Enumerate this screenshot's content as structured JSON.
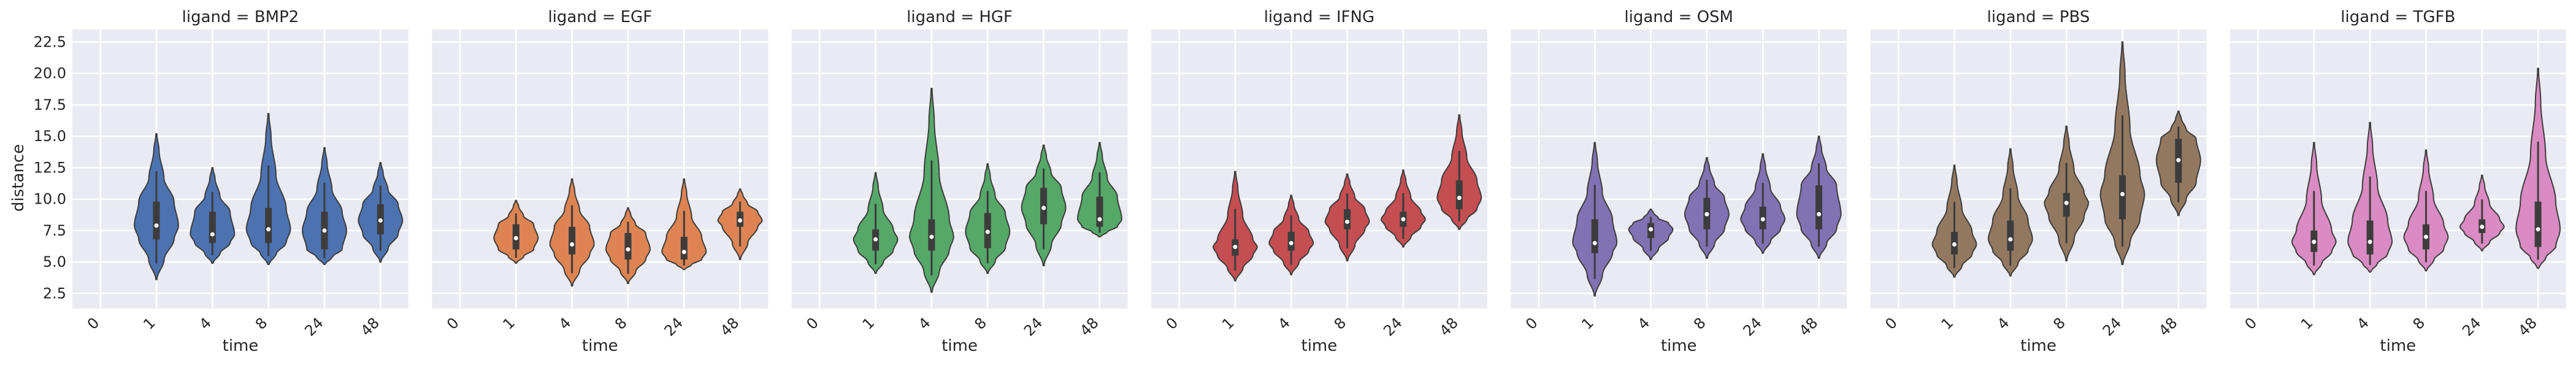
{
  "figure": {
    "ylabel": "distance",
    "xlabel": "time"
  },
  "chart_data": {
    "type": "violin",
    "facet_title_prefix": "ligand = ",
    "categories": [
      "0",
      "1",
      "4",
      "8",
      "24",
      "48"
    ],
    "ylim": [
      1.3,
      23.5
    ],
    "yticks": [
      2.5,
      5.0,
      7.5,
      10.0,
      12.5,
      15.0,
      17.5,
      20.0,
      22.5
    ],
    "ytick_labels": [
      "2.5",
      "5.0",
      "7.5",
      "10.0",
      "12.5",
      "15.0",
      "17.5",
      "20.0",
      "22.5"
    ],
    "grid": true,
    "panels": [
      {
        "ligand": "BMP2",
        "title": "ligand = BMP2",
        "color": "#4c72b0",
        "violins": [
          {
            "time": "1",
            "min": 3.6,
            "q1": 6.8,
            "median": 7.9,
            "q3": 9.8,
            "max": 15.2
          },
          {
            "time": "4",
            "min": 4.9,
            "q1": 6.5,
            "median": 7.2,
            "q3": 9.0,
            "max": 12.5
          },
          {
            "time": "8",
            "min": 4.8,
            "q1": 6.5,
            "median": 7.6,
            "q3": 9.3,
            "max": 16.8
          },
          {
            "time": "24",
            "min": 4.8,
            "q1": 6.0,
            "median": 7.5,
            "q3": 9.0,
            "max": 14.1
          },
          {
            "time": "48",
            "min": 5.0,
            "q1": 7.2,
            "median": 8.3,
            "q3": 9.6,
            "max": 12.9
          }
        ]
      },
      {
        "ligand": "EGF",
        "title": "ligand = EGF",
        "color": "#dd8452",
        "violins": [
          {
            "time": "1",
            "min": 4.9,
            "q1": 6.0,
            "median": 6.9,
            "q3": 8.0,
            "max": 9.9
          },
          {
            "time": "4",
            "min": 3.1,
            "q1": 5.6,
            "median": 6.4,
            "q3": 7.8,
            "max": 11.6
          },
          {
            "time": "8",
            "min": 3.3,
            "q1": 5.2,
            "median": 6.0,
            "q3": 7.3,
            "max": 9.3
          },
          {
            "time": "24",
            "min": 4.4,
            "q1": 5.2,
            "median": 5.8,
            "q3": 7.0,
            "max": 11.6
          },
          {
            "time": "48",
            "min": 5.2,
            "q1": 7.8,
            "median": 8.3,
            "q3": 9.0,
            "max": 10.8
          }
        ]
      },
      {
        "ligand": "HGF",
        "title": "ligand = HGF",
        "color": "#55a868",
        "violins": [
          {
            "time": "1",
            "min": 4.1,
            "q1": 5.9,
            "median": 6.8,
            "q3": 7.6,
            "max": 12.1
          },
          {
            "time": "4",
            "min": 2.6,
            "q1": 5.9,
            "median": 7.0,
            "q3": 8.4,
            "max": 18.8
          },
          {
            "time": "8",
            "min": 4.1,
            "q1": 6.1,
            "median": 7.4,
            "q3": 8.9,
            "max": 12.8
          },
          {
            "time": "24",
            "min": 4.7,
            "q1": 8.0,
            "median": 9.3,
            "q3": 10.9,
            "max": 14.3
          },
          {
            "time": "48",
            "min": 7.0,
            "q1": 7.8,
            "median": 8.4,
            "q3": 10.2,
            "max": 14.5
          }
        ]
      },
      {
        "ligand": "IFNG",
        "title": "ligand = IFNG",
        "color": "#c44e52",
        "violins": [
          {
            "time": "1",
            "min": 3.5,
            "q1": 5.5,
            "median": 6.2,
            "q3": 6.8,
            "max": 12.2
          },
          {
            "time": "4",
            "min": 4.0,
            "q1": 5.9,
            "median": 6.5,
            "q3": 7.4,
            "max": 10.3
          },
          {
            "time": "8",
            "min": 5.1,
            "q1": 7.6,
            "median": 8.2,
            "q3": 9.2,
            "max": 12.0
          },
          {
            "time": "24",
            "min": 6.2,
            "q1": 7.8,
            "median": 8.4,
            "q3": 9.0,
            "max": 12.3
          },
          {
            "time": "48",
            "min": 7.6,
            "q1": 9.2,
            "median": 10.1,
            "q3": 11.5,
            "max": 16.7
          }
        ]
      },
      {
        "ligand": "OSM",
        "title": "ligand = OSM",
        "color": "#8172b3",
        "violins": [
          {
            "time": "1",
            "min": 2.3,
            "q1": 5.7,
            "median": 6.5,
            "q3": 8.4,
            "max": 14.5
          },
          {
            "time": "4",
            "min": 5.2,
            "q1": 6.9,
            "median": 7.6,
            "q3": 8.1,
            "max": 9.2
          },
          {
            "time": "8",
            "min": 5.3,
            "q1": 7.6,
            "median": 8.8,
            "q3": 10.1,
            "max": 13.3
          },
          {
            "time": "24",
            "min": 5.7,
            "q1": 7.6,
            "median": 8.4,
            "q3": 9.4,
            "max": 13.6
          },
          {
            "time": "48",
            "min": 5.3,
            "q1": 7.6,
            "median": 8.8,
            "q3": 11.1,
            "max": 15.0
          }
        ]
      },
      {
        "ligand": "PBS",
        "title": "ligand = PBS",
        "color": "#937860",
        "violins": [
          {
            "time": "1",
            "min": 3.8,
            "q1": 5.6,
            "median": 6.4,
            "q3": 7.4,
            "max": 12.7
          },
          {
            "time": "4",
            "min": 3.9,
            "q1": 5.9,
            "median": 6.8,
            "q3": 8.3,
            "max": 14.0
          },
          {
            "time": "8",
            "min": 5.1,
            "q1": 8.6,
            "median": 9.7,
            "q3": 10.5,
            "max": 15.8
          },
          {
            "time": "24",
            "min": 4.8,
            "q1": 8.4,
            "median": 10.4,
            "q3": 11.9,
            "max": 22.5
          },
          {
            "time": "48",
            "min": 8.7,
            "q1": 11.3,
            "median": 13.1,
            "q3": 14.8,
            "max": 17.0
          }
        ]
      },
      {
        "ligand": "TGFB",
        "title": "ligand = TGFB",
        "color": "#da8bc3",
        "violins": [
          {
            "time": "1",
            "min": 4.0,
            "q1": 5.8,
            "median": 6.6,
            "q3": 7.5,
            "max": 14.5
          },
          {
            "time": "4",
            "min": 4.2,
            "q1": 5.6,
            "median": 6.6,
            "q3": 8.3,
            "max": 16.1
          },
          {
            "time": "8",
            "min": 4.3,
            "q1": 6.0,
            "median": 7.0,
            "q3": 8.0,
            "max": 13.9
          },
          {
            "time": "24",
            "min": 5.9,
            "q1": 7.3,
            "median": 7.8,
            "q3": 8.4,
            "max": 11.9
          },
          {
            "time": "48",
            "min": 4.5,
            "q1": 6.2,
            "median": 7.6,
            "q3": 9.8,
            "max": 20.4
          }
        ]
      }
    ]
  }
}
